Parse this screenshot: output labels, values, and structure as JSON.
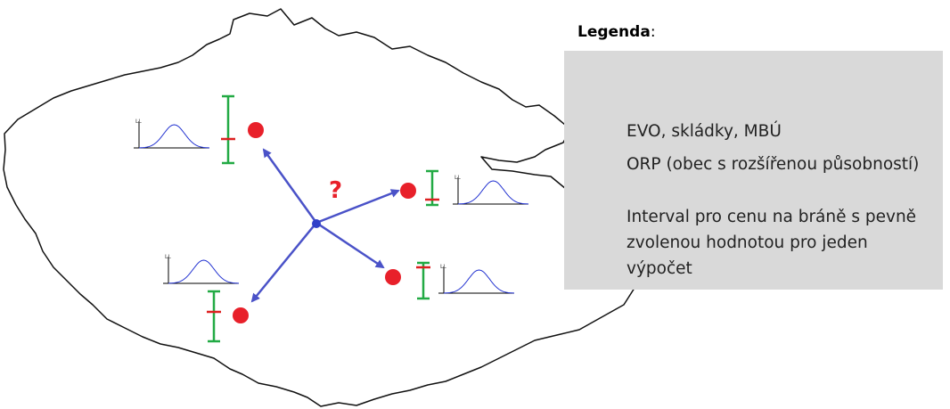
{
  "legend": {
    "title": "Legenda",
    "title_suffix": ":",
    "items": [
      "EVO, skládky, MBÚ",
      "ORP (obec s rozšířenou působností)",
      "Interval pro cenu na bráně s pevně zvolenou hodnotou pro jeden výpočet"
    ]
  },
  "question": "?",
  "plot_label": "LL"
}
